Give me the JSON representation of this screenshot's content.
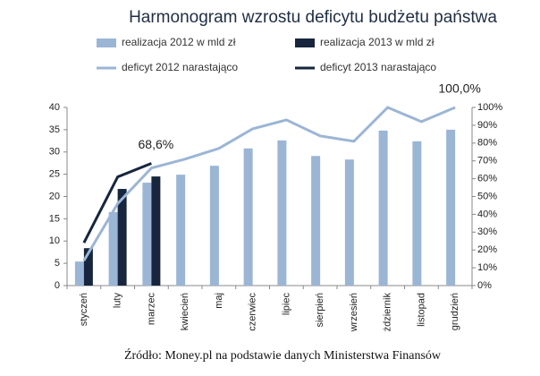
{
  "chart_data": {
    "type": "bar-line",
    "title": "Harmonogram wzrostu deficytu budżetu państwa",
    "categories": [
      "styczeń",
      "luty",
      "marzec",
      "kwiecień",
      "maj",
      "czerwiec",
      "lipiec",
      "sierpień",
      "wrzesień",
      "żdziernik",
      "listopad",
      "grudzień"
    ],
    "series": [
      {
        "name": "realizacja 2012 w mld zł",
        "kind": "bar",
        "color": "#9bb5d5",
        "values": [
          5.4,
          16.5,
          23.1,
          24.9,
          26.9,
          30.8,
          32.6,
          29.1,
          28.3,
          34.8,
          32.4,
          35.0
        ]
      },
      {
        "name": "realizacja 2013 w mld zł",
        "kind": "bar",
        "color": "#17263d",
        "values": [
          8.4,
          21.7,
          24.5,
          null,
          null,
          null,
          null,
          null,
          null,
          null,
          null,
          null
        ]
      },
      {
        "name": "deficyt 2012 narastająco",
        "kind": "line",
        "axis": "y2",
        "color": "#9bb5d5",
        "values": [
          14,
          46,
          66,
          71,
          77,
          88,
          93,
          84,
          81,
          100,
          92,
          100
        ]
      },
      {
        "name": "deficyt 2013 narastająco",
        "kind": "line",
        "axis": "y2",
        "color": "#17263d",
        "values": [
          24,
          61,
          68.6,
          null,
          null,
          null,
          null,
          null,
          null,
          null,
          null,
          null
        ]
      }
    ],
    "ylim": [
      0,
      40
    ],
    "yticks": [
      0,
      5,
      10,
      15,
      20,
      25,
      30,
      35,
      40
    ],
    "y2lim": [
      0,
      100
    ],
    "y2ticks": [
      {
        "value": 0,
        "label": "0%"
      },
      {
        "value": 10,
        "label": "10%"
      },
      {
        "value": 20,
        "label": "20%"
      },
      {
        "value": 30,
        "label": "30%"
      },
      {
        "value": 40,
        "label": "40%"
      },
      {
        "value": 50,
        "label": "50%"
      },
      {
        "value": 60,
        "label": "60%"
      },
      {
        "value": 70,
        "label": "70%"
      },
      {
        "value": 80,
        "label": "80%"
      },
      {
        "value": 90,
        "label": "90%"
      },
      {
        "value": 100,
        "label": "100%"
      }
    ],
    "annotations": [
      {
        "text": "68,6%",
        "category": 2,
        "value": 68.6
      },
      {
        "text": "100,0%",
        "category": 11,
        "value": 100
      }
    ],
    "source": "Źródło: Money.pl na podstawie danych Ministerstwa Finansów"
  }
}
